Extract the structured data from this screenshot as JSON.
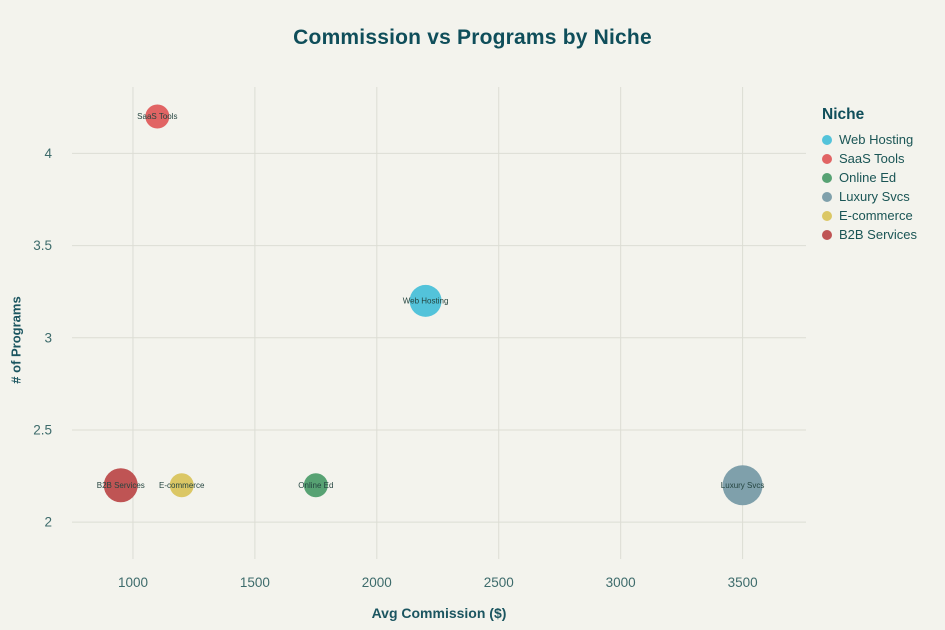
{
  "chart_data": {
    "type": "scatter",
    "title": "Commission vs Programs by Niche",
    "xlabel": "Avg Commission ($)",
    "ylabel": "# of Programs",
    "legend_title": "Niche",
    "legend_position": "right",
    "grid": true,
    "background_color": "#f3f3ed",
    "grid_color": "#dcddd4",
    "xlim": [
      750,
      3760
    ],
    "ylim": [
      1.8,
      4.36
    ],
    "xticks": [
      1000,
      1500,
      2000,
      2500,
      3000,
      3500
    ],
    "yticks": [
      2,
      2.5,
      3,
      3.5,
      4
    ],
    "points": [
      {
        "label": "Web Hosting",
        "x": 2200,
        "y": 3.2,
        "r": 16,
        "color": "#53c3da"
      },
      {
        "label": "SaaS Tools",
        "x": 1100,
        "y": 4.2,
        "r": 12,
        "color": "#e16464"
      },
      {
        "label": "Online Ed",
        "x": 1750,
        "y": 2.2,
        "r": 12,
        "color": "#57a273"
      },
      {
        "label": "Luxury Svcs",
        "x": 3500,
        "y": 2.2,
        "r": 20,
        "color": "#7fa0ab"
      },
      {
        "label": "E-commerce",
        "x": 1200,
        "y": 2.2,
        "r": 12,
        "color": "#dbc765"
      },
      {
        "label": "B2B Services",
        "x": 950,
        "y": 2.2,
        "r": 17,
        "color": "#bf5454"
      }
    ]
  }
}
